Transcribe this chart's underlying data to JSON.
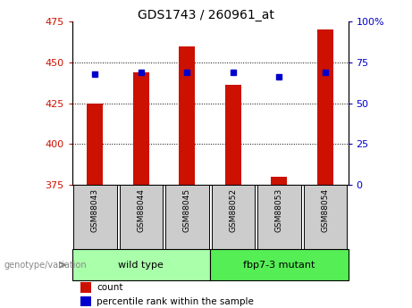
{
  "title": "GDS1743 / 260961_at",
  "categories": [
    "GSM88043",
    "GSM88044",
    "GSM88045",
    "GSM88052",
    "GSM88053",
    "GSM88054"
  ],
  "bar_values": [
    425,
    444,
    460,
    436,
    380,
    470
  ],
  "bar_base": 375,
  "percentile_values": [
    443,
    444,
    444,
    444,
    441,
    444
  ],
  "ylim_left": [
    375,
    475
  ],
  "ylim_right": [
    0,
    100
  ],
  "yticks_left": [
    375,
    400,
    425,
    450,
    475
  ],
  "yticks_right": [
    0,
    25,
    50,
    75,
    100
  ],
  "bar_color": "#cc1100",
  "dot_color": "#0000cc",
  "bg_color": "#ffffff",
  "group1_label": "wild type",
  "group2_label": "fbp7-3 mutant",
  "group1_color": "#aaffaa",
  "group2_color": "#55ee55",
  "label_color_left": "#cc1100",
  "label_color_right": "#0000cc",
  "legend_count_label": "count",
  "legend_percentile_label": "percentile rank within the sample",
  "genotype_label": "genotype/variation",
  "bar_width": 0.35,
  "tick_bg_color": "#cccccc",
  "title_fontsize": 10
}
